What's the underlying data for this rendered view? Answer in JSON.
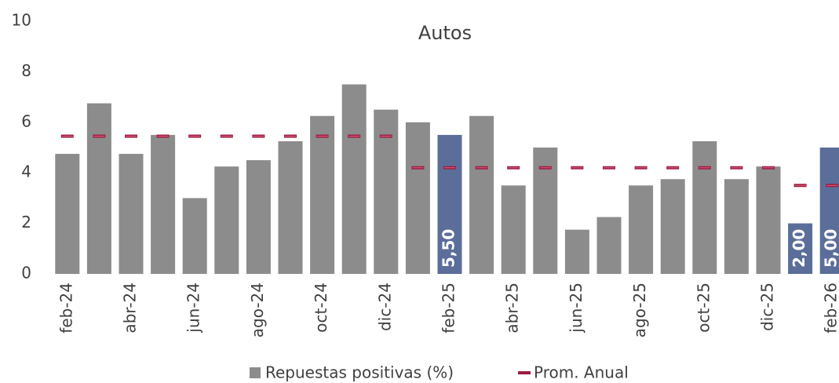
{
  "chart_data": {
    "type": "bar",
    "title": "Autos",
    "categories": [
      "feb-24",
      null,
      "abr-24",
      null,
      "jun-24",
      null,
      "ago-24",
      null,
      "oct-24",
      null,
      "dic-24",
      null,
      "feb-25",
      null,
      "abr-25",
      null,
      "jun-25",
      null,
      "ago-25",
      null,
      "oct-25",
      null,
      "dic-25",
      null,
      "feb-26"
    ],
    "series": [
      {
        "name": "Repuestas positivas (%)",
        "type": "bar",
        "values": [
          4.75,
          6.75,
          4.75,
          5.5,
          3.0,
          4.25,
          4.5,
          5.25,
          6.25,
          7.5,
          6.5,
          6.0,
          5.5,
          6.25,
          3.5,
          5.0,
          1.75,
          2.25,
          3.5,
          3.75,
          5.25,
          3.75,
          4.25,
          2.0,
          5.0
        ],
        "colors": [
          "#8c8c8c",
          "#8c8c8c",
          "#8c8c8c",
          "#8c8c8c",
          "#8c8c8c",
          "#8c8c8c",
          "#8c8c8c",
          "#8c8c8c",
          "#8c8c8c",
          "#8c8c8c",
          "#8c8c8c",
          "#8c8c8c",
          "#5b6e9a",
          "#8c8c8c",
          "#8c8c8c",
          "#8c8c8c",
          "#8c8c8c",
          "#8c8c8c",
          "#8c8c8c",
          "#8c8c8c",
          "#8c8c8c",
          "#8c8c8c",
          "#8c8c8c",
          "#5b6e9a",
          "#5b6e9a"
        ],
        "color": "#8c8c8c",
        "value_labels": [
          null,
          null,
          null,
          null,
          null,
          null,
          null,
          null,
          null,
          null,
          null,
          null,
          "5,50",
          null,
          null,
          null,
          null,
          null,
          null,
          null,
          null,
          null,
          null,
          "2,00",
          "5,00"
        ]
      },
      {
        "name": "Prom. Anual",
        "type": "dash",
        "color": "#9b1b3f",
        "values": [
          5.45,
          5.45,
          5.45,
          5.45,
          5.45,
          5.45,
          5.45,
          5.45,
          5.45,
          5.45,
          5.45,
          4.2,
          4.2,
          4.2,
          4.2,
          4.2,
          4.2,
          4.2,
          4.2,
          4.2,
          4.2,
          4.2,
          4.2,
          3.5,
          3.5
        ]
      }
    ],
    "ylim": [
      0,
      10
    ],
    "yticks": [
      0,
      2,
      4,
      6,
      8,
      10
    ],
    "grid": false
  }
}
